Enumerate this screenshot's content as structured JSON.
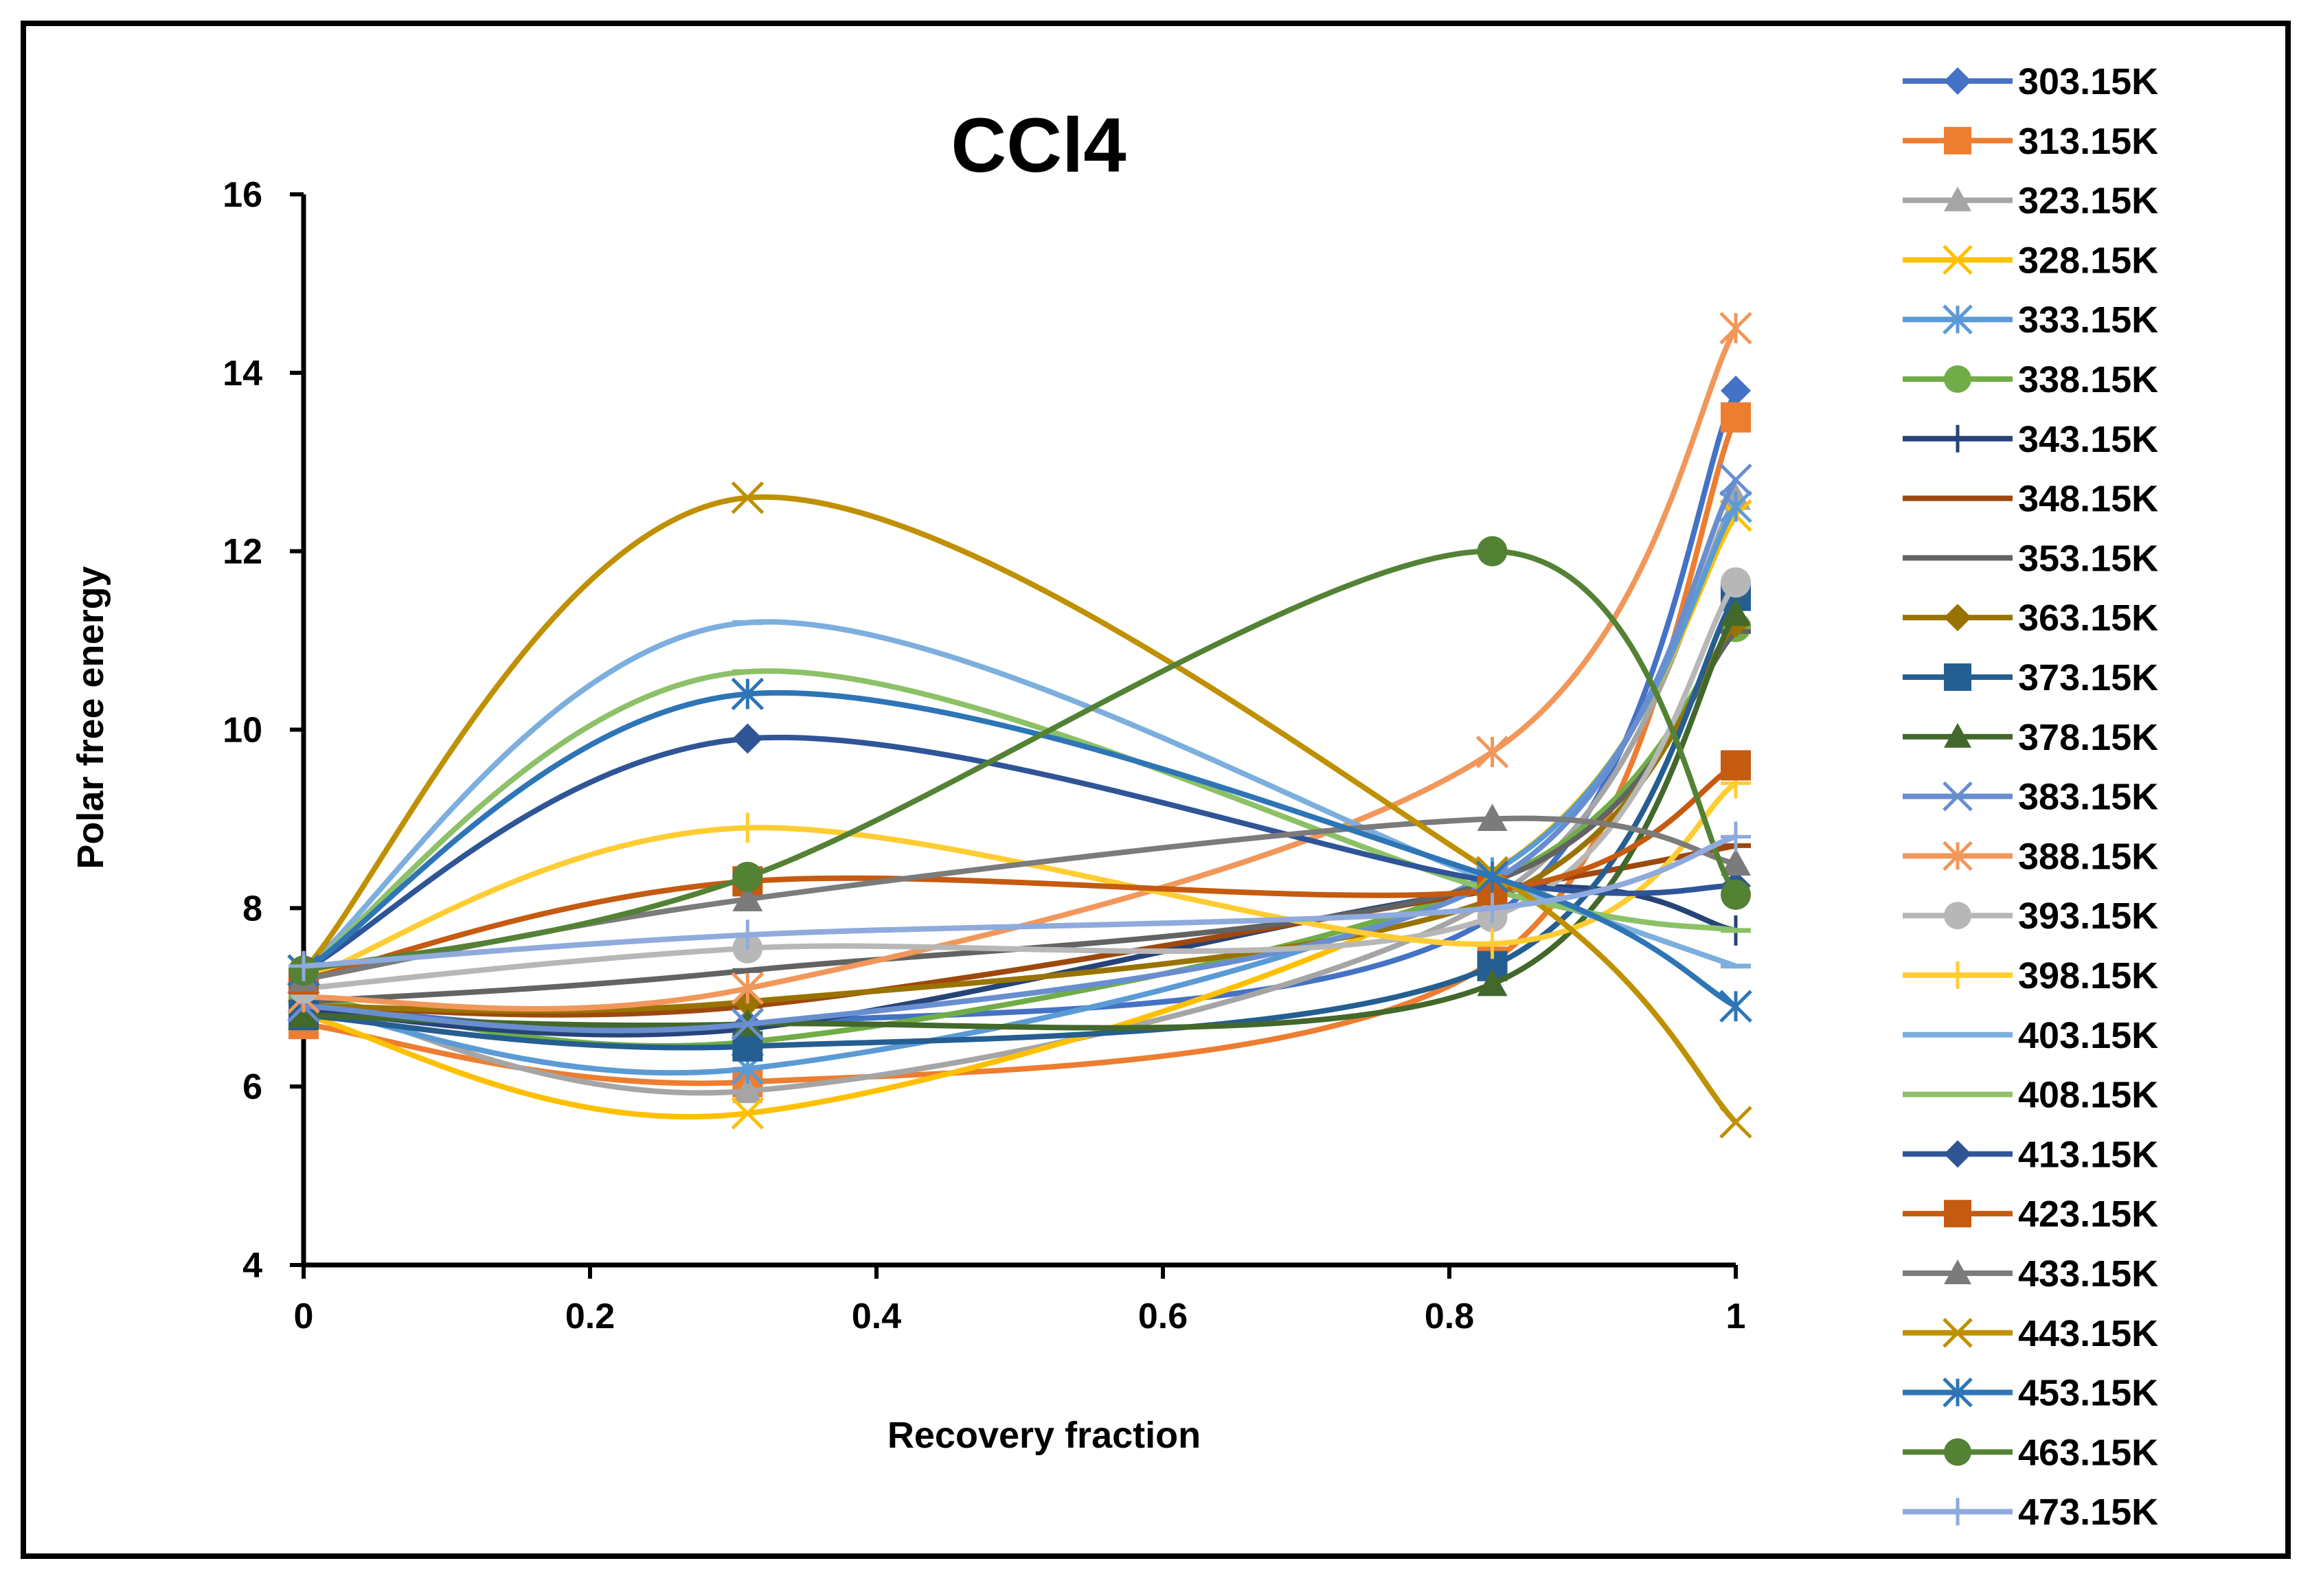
{
  "chart_data": {
    "type": "line",
    "title": "CCl4",
    "xlabel": "Recovery fraction",
    "ylabel": "Polar free energy",
    "xlim": [
      0,
      1
    ],
    "ylim": [
      4,
      16
    ],
    "x_ticks": [
      "0",
      "0.2",
      "0.4",
      "0.6",
      "0.8",
      "1"
    ],
    "y_ticks": [
      "4",
      "6",
      "8",
      "10",
      "12",
      "14",
      "16"
    ],
    "x": [
      0,
      0.31,
      0.83,
      1
    ],
    "legend_position": "right",
    "series": [
      {
        "name": "303.15K",
        "color": "#4472C4",
        "marker": "diamond",
        "values": [
          6.9,
          6.7,
          7.9,
          13.8
        ]
      },
      {
        "name": "313.15K",
        "color": "#ED7D31",
        "marker": "square",
        "values": [
          6.7,
          6.05,
          7.4,
          13.5
        ]
      },
      {
        "name": "323.15K",
        "color": "#A5A5A5",
        "marker": "triangle",
        "values": [
          7.0,
          5.95,
          8.1,
          12.6
        ]
      },
      {
        "name": "328.15K",
        "color": "#FFC000",
        "marker": "x",
        "values": [
          6.8,
          5.7,
          8.4,
          12.4
        ]
      },
      {
        "name": "333.15K",
        "color": "#5B9BD5",
        "marker": "star",
        "values": [
          6.9,
          6.2,
          8.4,
          12.5
        ]
      },
      {
        "name": "338.15K",
        "color": "#70AD47",
        "marker": "circle",
        "values": [
          7.0,
          6.5,
          8.3,
          11.15
        ]
      },
      {
        "name": "343.15K",
        "color": "#264478",
        "marker": "plus",
        "values": [
          6.85,
          6.65,
          8.2,
          7.75
        ]
      },
      {
        "name": "348.15K",
        "color": "#9E480E",
        "marker": "dash",
        "values": [
          6.9,
          6.9,
          8.2,
          8.7
        ]
      },
      {
        "name": "353.15K",
        "color": "#636363",
        "marker": "dash",
        "values": [
          6.95,
          7.3,
          8.3,
          11.1
        ]
      },
      {
        "name": "363.15K",
        "color": "#997300",
        "marker": "diamond",
        "values": [
          6.9,
          6.95,
          8.1,
          11.2
        ]
      },
      {
        "name": "373.15K",
        "color": "#255E91",
        "marker": "square",
        "values": [
          6.8,
          6.45,
          7.35,
          11.5
        ]
      },
      {
        "name": "378.15K",
        "color": "#43682B",
        "marker": "triangle",
        "values": [
          6.8,
          6.7,
          7.15,
          11.3
        ]
      },
      {
        "name": "383.15K",
        "color": "#698ED0",
        "marker": "x",
        "values": [
          6.9,
          6.7,
          8.3,
          12.8
        ]
      },
      {
        "name": "388.15K",
        "color": "#F1975A",
        "marker": "star",
        "values": [
          7.0,
          7.1,
          9.75,
          14.5
        ]
      },
      {
        "name": "393.15K",
        "color": "#B7B7B7",
        "marker": "circle",
        "values": [
          7.1,
          7.55,
          7.9,
          11.65
        ]
      },
      {
        "name": "398.15K",
        "color": "#FFCD33",
        "marker": "plus",
        "values": [
          7.2,
          8.9,
          7.6,
          9.4
        ]
      },
      {
        "name": "403.15K",
        "color": "#7CAFDD",
        "marker": "dash",
        "values": [
          7.3,
          11.2,
          8.3,
          7.35
        ]
      },
      {
        "name": "408.15K",
        "color": "#8CC168",
        "marker": "dash",
        "values": [
          7.3,
          10.65,
          8.2,
          7.75
        ]
      },
      {
        "name": "413.15K",
        "color": "#2F5597",
        "marker": "diamond",
        "values": [
          7.3,
          9.9,
          8.3,
          8.25
        ]
      },
      {
        "name": "423.15K",
        "color": "#C55A11",
        "marker": "square",
        "values": [
          7.2,
          8.3,
          8.2,
          9.6
        ]
      },
      {
        "name": "433.15K",
        "color": "#7B7B7B",
        "marker": "triangle",
        "values": [
          7.2,
          8.1,
          9.0,
          8.5
        ]
      },
      {
        "name": "443.15K",
        "color": "#BF9000",
        "marker": "x",
        "values": [
          7.3,
          12.6,
          8.4,
          5.6
        ]
      },
      {
        "name": "453.15K",
        "color": "#2E75B6",
        "marker": "star",
        "values": [
          7.3,
          10.4,
          8.35,
          6.9
        ]
      },
      {
        "name": "463.15K",
        "color": "#548235",
        "marker": "circle",
        "values": [
          7.3,
          8.35,
          12.0,
          8.15
        ]
      },
      {
        "name": "473.15K",
        "color": "#8FAADC",
        "marker": "plus",
        "values": [
          7.35,
          7.7,
          8.0,
          8.8
        ]
      }
    ]
  }
}
